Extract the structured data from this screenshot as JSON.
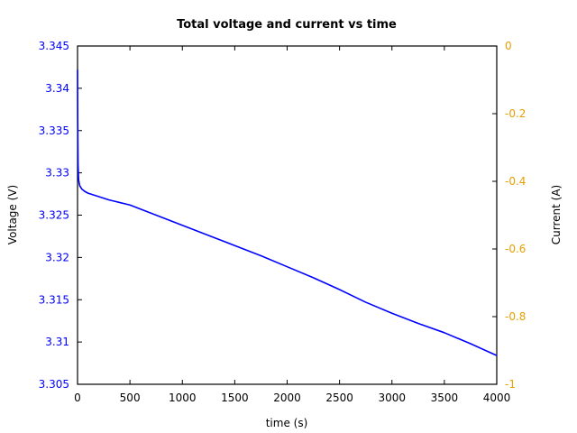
{
  "chart_data": {
    "type": "line",
    "title": "Total voltage and current vs time",
    "xlabel": "time (s)",
    "ylabel": "Voltage (V)",
    "y2label": "Current (A)",
    "xlim": [
      0,
      4000
    ],
    "ylim": [
      3.305,
      3.345
    ],
    "y2lim": [
      -1,
      0
    ],
    "xticks": [
      "0",
      "500",
      "1000",
      "1500",
      "2000",
      "2500",
      "3000",
      "3500",
      "4000"
    ],
    "yticks": [
      "3.305",
      "3.31",
      "3.315",
      "3.32",
      "3.325",
      "3.33",
      "3.335",
      "3.34",
      "3.345"
    ],
    "y2ticks": [
      "-1",
      "-0.8",
      "-0.6",
      "-0.4",
      "-0.2",
      "0"
    ],
    "grid": false,
    "legend": null,
    "colors": {
      "voltage": "#0000ff",
      "current_axis": "#e69f00",
      "axes": "#000000"
    },
    "series": [
      {
        "name": "Voltage",
        "axis": "left",
        "x": [
          0,
          2,
          5,
          10,
          20,
          40,
          70,
          100,
          150,
          200,
          300,
          400,
          500,
          750,
          1000,
          1250,
          1500,
          1750,
          2000,
          2250,
          2500,
          2750,
          3000,
          3250,
          3500,
          3750,
          4000
        ],
        "values": [
          3.3422,
          3.336,
          3.331,
          3.3292,
          3.3285,
          3.3281,
          3.3278,
          3.3276,
          3.3274,
          3.3272,
          3.3268,
          3.3265,
          3.3262,
          3.325,
          3.3238,
          3.3226,
          3.3214,
          3.3202,
          3.3189,
          3.3176,
          3.3162,
          3.3147,
          3.3134,
          3.3122,
          3.3111,
          3.3098,
          3.3084
        ]
      }
    ]
  }
}
